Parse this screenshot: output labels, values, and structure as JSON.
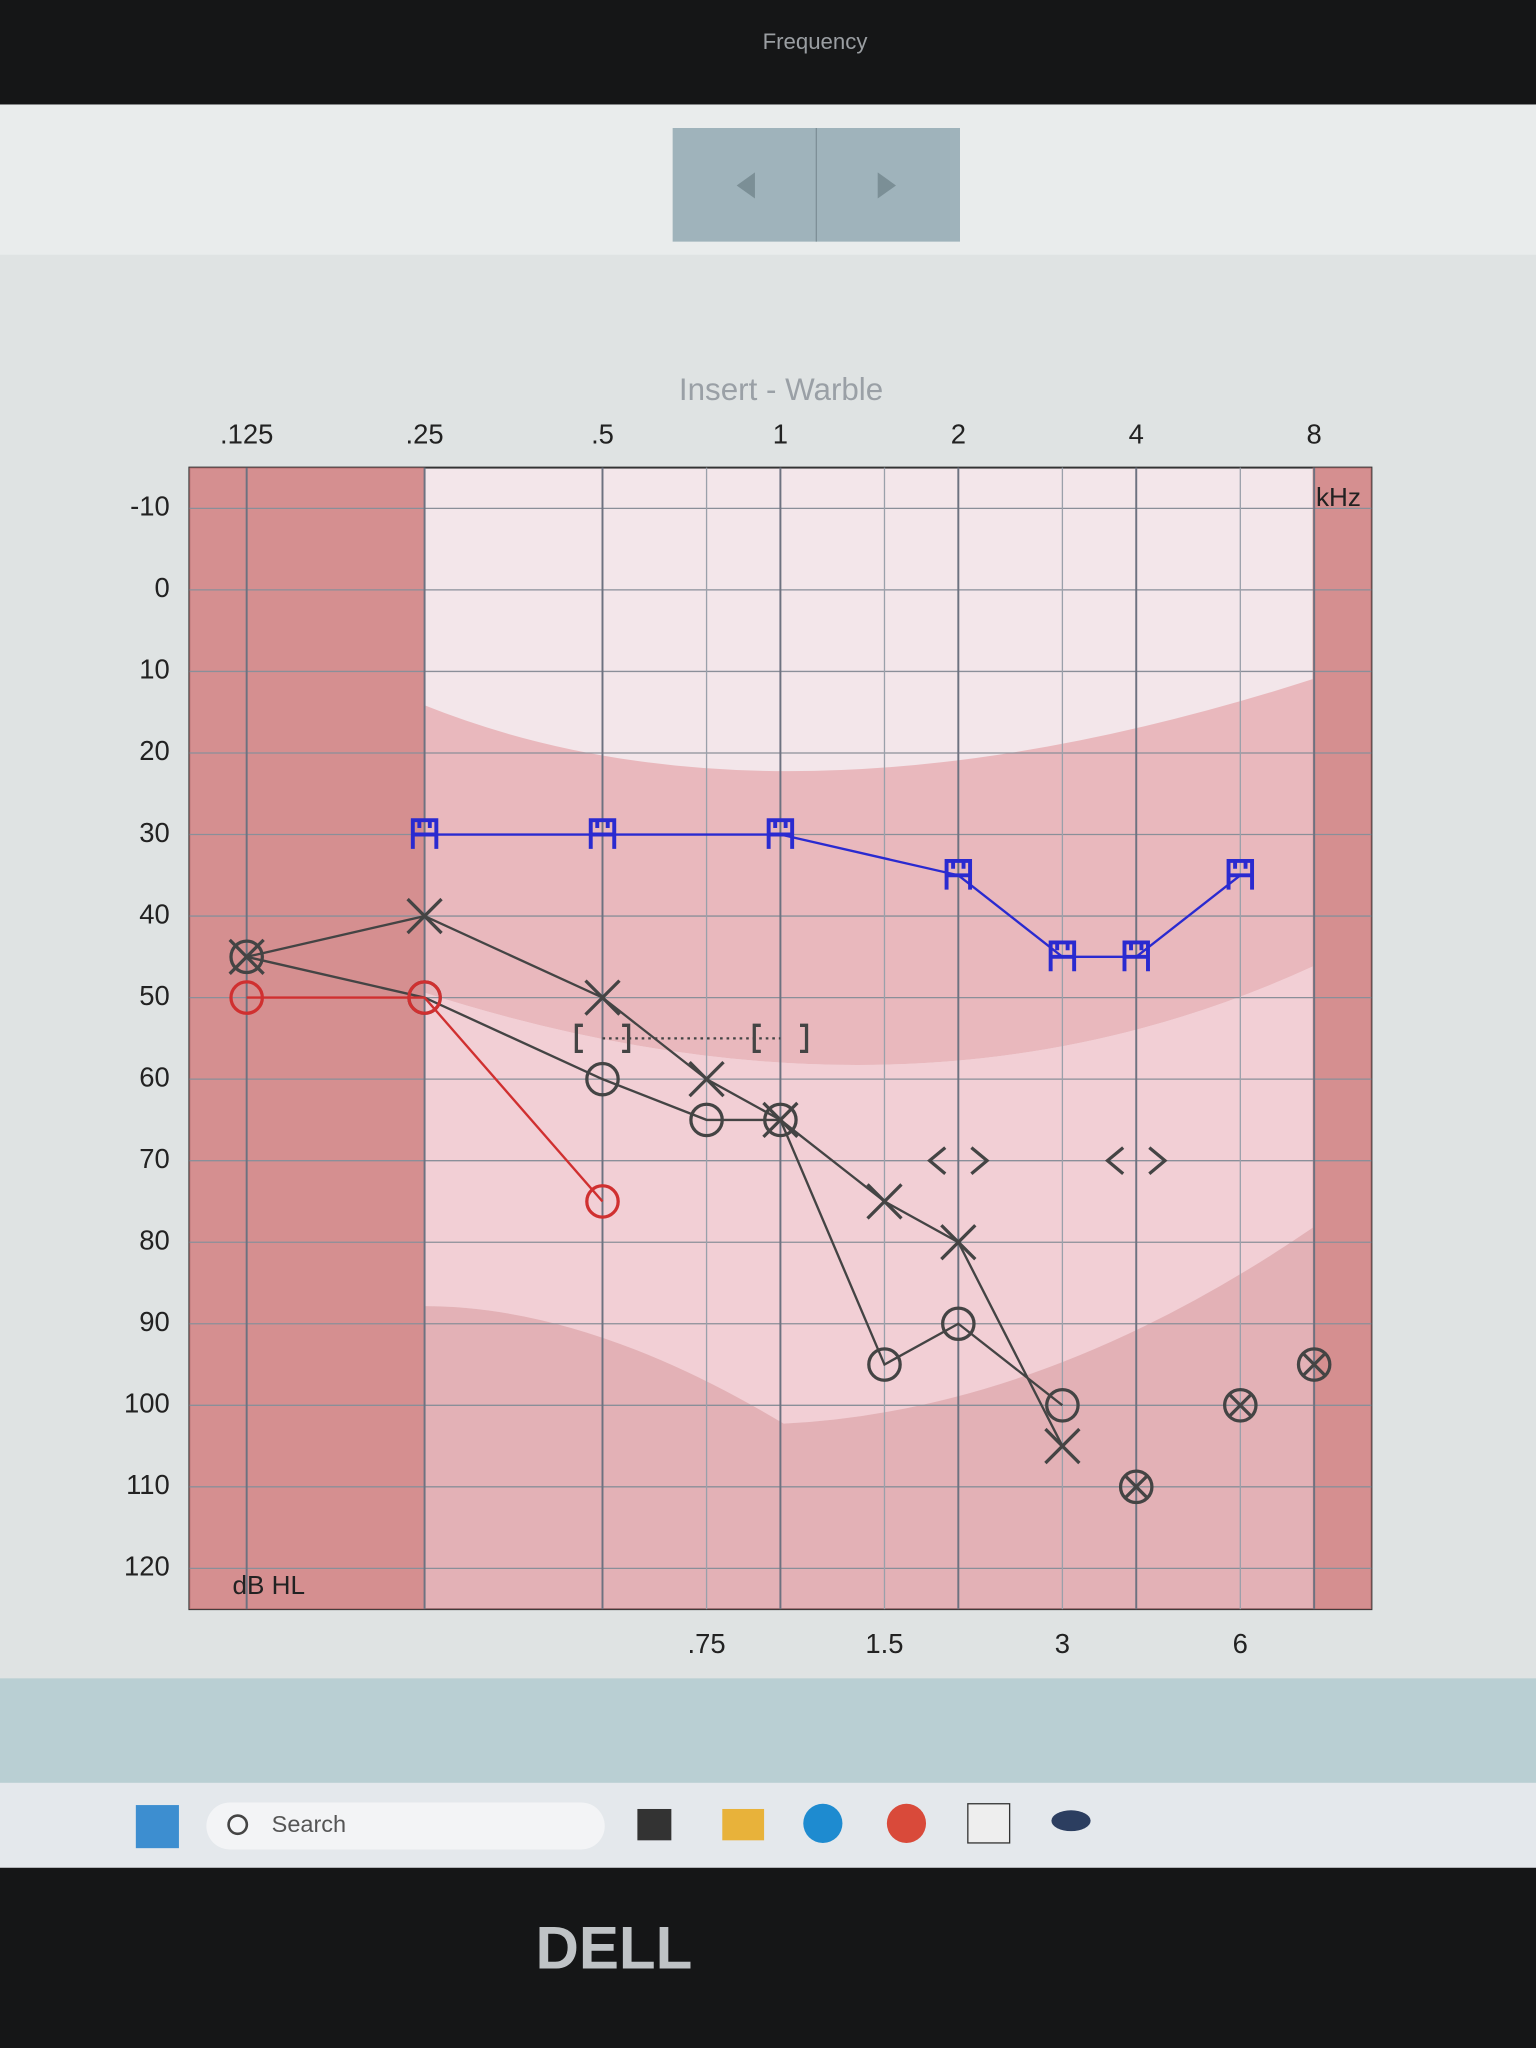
{
  "ui": {
    "header": "Frequency",
    "search": "Search",
    "brand": "DELL"
  },
  "chart_data": {
    "type": "audiogram",
    "title": "Insert - Warble",
    "x_unit": "kHz",
    "y_unit": "dB HL",
    "xscale": "log",
    "y_inverted": true,
    "grid": true,
    "xlim": [
      0.1,
      10
    ],
    "ylim": [
      -15,
      125
    ],
    "xticks": [
      {
        "value": 0.125,
        "label": ".125"
      },
      {
        "value": 0.25,
        "label": ".25"
      },
      {
        "value": 0.5,
        "label": ".5"
      },
      1,
      2,
      4,
      8
    ],
    "xticks_minor": [
      {
        "value": 0.75,
        "label": ".75"
      },
      {
        "value": 1.5,
        "label": "1.5"
      },
      3,
      6
    ],
    "yticks": [
      -10,
      0,
      10,
      20,
      30,
      40,
      50,
      60,
      70,
      80,
      90,
      100,
      110,
      120
    ],
    "series": [
      {
        "color": "#2a2ad0",
        "marker": "aided",
        "line": "solid",
        "x": [
          0.25,
          0.5,
          1,
          2,
          3,
          4,
          6
        ],
        "values": [
          30,
          30,
          30,
          35,
          45,
          45,
          35
        ]
      },
      {
        "color": "#444444",
        "marker": "x",
        "line": "solid",
        "x": [
          0.125,
          0.25,
          0.5,
          0.75,
          1,
          1.5,
          2,
          3
        ],
        "values": [
          45,
          40,
          50,
          60,
          65,
          75,
          80,
          105
        ]
      },
      {
        "color": "#444444",
        "marker": "o",
        "line": "solid",
        "x": [
          0.125,
          0.25,
          0.5,
          0.75,
          1,
          1.5,
          2,
          3
        ],
        "values": [
          45,
          50,
          60,
          65,
          65,
          95,
          90,
          100
        ]
      },
      {
        "color": "#d03030",
        "marker": "o",
        "line": "solid",
        "x": [
          0.125,
          0.25,
          0.5
        ],
        "values": [
          50,
          50,
          75
        ]
      },
      {
        "color": "#444444",
        "marker": "brackets",
        "line": "dotted",
        "x": [
          0.5,
          1
        ],
        "values": [
          55,
          55
        ]
      },
      {
        "color": "#444444",
        "marker": "chevrons",
        "line": "none",
        "x": [
          2,
          4
        ],
        "values": [
          70,
          70
        ]
      },
      {
        "color": "#444444",
        "marker": "circle-x",
        "line": "none",
        "x": [
          4,
          6,
          8
        ],
        "values": [
          110,
          100,
          95
        ]
      }
    ]
  }
}
